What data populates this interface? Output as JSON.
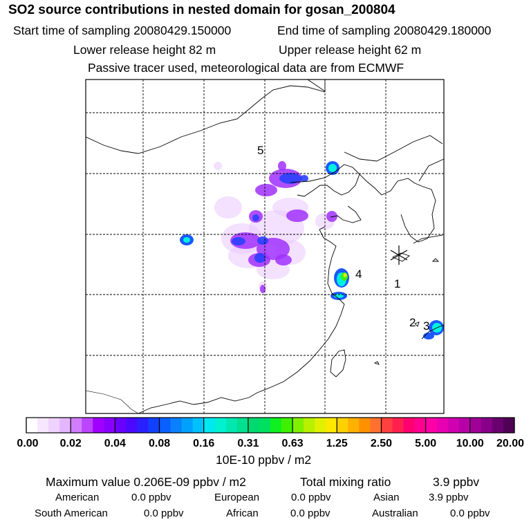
{
  "header": {
    "title": "SO2 source contributions in nested domain for gosan_200804",
    "start_label": "Start time of sampling 20080429.150000",
    "end_label": "End time of sampling 20080429.180000",
    "lower_label": "Lower release height   82 m",
    "upper_label": "Upper release height   62 m",
    "note": "Passive tracer used, meteorological data are from ECMWF"
  },
  "chart_data": {
    "type": "heatmap",
    "title": "SO2 source contributions in nested domain for gosan_200804",
    "colorbar": {
      "unit_label": "10E-10 ppbv / m2",
      "tick_labels": [
        "0.00",
        "0.02",
        "0.04",
        "0.08",
        "0.16",
        "0.31",
        "0.63",
        "1.25",
        "2.50",
        "5.00",
        "10.00",
        "20.00"
      ],
      "colors": [
        "#ffffff",
        "#f7e6ff",
        "#efd2ff",
        "#e4b6ff",
        "#d27dff",
        "#bb44ff",
        "#a000ff",
        "#8a00ff",
        "#6a00ff",
        "#4a0aff",
        "#2a20ff",
        "#1140ff",
        "#0a60ff",
        "#0a80ff",
        "#00a0ff",
        "#00c0ff",
        "#00e8f0",
        "#00f0d0",
        "#00e8b0",
        "#00e090",
        "#00d870",
        "#00e060",
        "#10f020",
        "#40f000",
        "#80f000",
        "#b8f000",
        "#e0f000",
        "#ffe800",
        "#ffd000",
        "#ffb000",
        "#ff9000",
        "#ff7030",
        "#ff4040",
        "#ff2050",
        "#ff0070",
        "#ff0090",
        "#ff00a8",
        "#e800b0",
        "#d000b0",
        "#b800a8",
        "#a00098",
        "#880088",
        "#6a0070",
        "#500055"
      ]
    },
    "source_labels": [
      "1",
      "2",
      "3",
      "4",
      "5"
    ],
    "receptor_marker": "asterisk",
    "grid": true
  },
  "footer": {
    "max_label": "Maximum value  0.206E-09 ppbv / m2",
    "total_label": "Total mixing ratio",
    "total_value": "3.9 ppbv",
    "regions": [
      {
        "name": "American",
        "value": "0.0 ppbv"
      },
      {
        "name": "European",
        "value": "0.0 ppbv"
      },
      {
        "name": "Asian",
        "value": "3.9 ppbv"
      },
      {
        "name": "South American",
        "value": "0.0 ppbv"
      },
      {
        "name": "African",
        "value": "0.0 ppbv"
      },
      {
        "name": "Australian",
        "value": "0.0 ppbv"
      }
    ]
  }
}
